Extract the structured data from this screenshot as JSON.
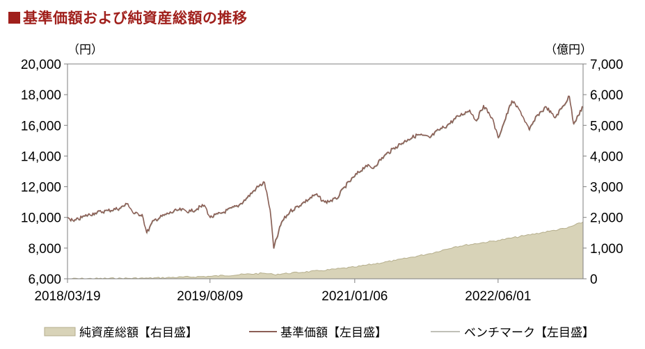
{
  "title": "基準価額および純資産総額の推移",
  "colors": {
    "title": "#a0201c",
    "nav_line": "#8b5e55",
    "benchmark_line": "#9a9a8c",
    "assets_fill": "#d8d3b8",
    "assets_stroke": "#b5ae8c"
  },
  "chart_data": {
    "type": "line",
    "left_axis": {
      "unit_label": "（円）",
      "ticks": [
        "20,000",
        "18,000",
        "16,000",
        "14,000",
        "12,000",
        "10,000",
        "8,000",
        "6,000"
      ],
      "ylim": [
        6000,
        20000
      ]
    },
    "right_axis": {
      "unit_label": "（億円）",
      "ticks": [
        "7,000",
        "6,000",
        "5,000",
        "4,000",
        "3,000",
        "2,000",
        "1,000",
        "0"
      ],
      "ylim": [
        0,
        7000
      ]
    },
    "x_ticks": [
      "2018/03/19",
      "2019/08/09",
      "2021/01/06",
      "2022/06/01"
    ],
    "x_range": [
      "2018/03/19",
      "2023/03/31"
    ],
    "legend": {
      "assets": "純資産総額【右目盛】",
      "nav": "基準価額【左目盛】",
      "benchmark": "ベンチマーク【左目盛】"
    },
    "legend_position": "bottom",
    "grid": false,
    "series": [
      {
        "name": "基準価額【左目盛】",
        "axis": "left",
        "points": [
          [
            "2018/03/19",
            10000
          ],
          [
            "2018/04/10",
            9750
          ],
          [
            "2018/05/20",
            10100
          ],
          [
            "2018/06/25",
            10300
          ],
          [
            "2018/08/10",
            10450
          ],
          [
            "2018/09/20",
            10600
          ],
          [
            "2018/10/20",
            10900
          ],
          [
            "2018/11/10",
            10250
          ],
          [
            "2018/12/10",
            10200
          ],
          [
            "2018/12/26",
            9000
          ],
          [
            "2019/01/20",
            9800
          ],
          [
            "2019/03/05",
            10200
          ],
          [
            "2019/04/20",
            10500
          ],
          [
            "2019/06/01",
            10400
          ],
          [
            "2019/07/20",
            10800
          ],
          [
            "2019/08/09",
            10000
          ],
          [
            "2019/09/20",
            10300
          ],
          [
            "2019/11/20",
            10800
          ],
          [
            "2019/12/20",
            11300
          ],
          [
            "2020/01/20",
            11900
          ],
          [
            "2020/02/19",
            12300
          ],
          [
            "2020/03/10",
            10500
          ],
          [
            "2020/03/23",
            8000
          ],
          [
            "2020/04/20",
            9700
          ],
          [
            "2020/05/20",
            10400
          ],
          [
            "2020/07/01",
            10900
          ],
          [
            "2020/08/20",
            11500
          ],
          [
            "2020/09/20",
            11000
          ],
          [
            "2020/11/01",
            11200
          ],
          [
            "2020/12/01",
            12000
          ],
          [
            "2021/01/06",
            12700
          ],
          [
            "2021/02/15",
            13400
          ],
          [
            "2021/03/10",
            13200
          ],
          [
            "2021/04/20",
            14000
          ],
          [
            "2021/06/01",
            14600
          ],
          [
            "2021/07/15",
            15100
          ],
          [
            "2021/08/20",
            15400
          ],
          [
            "2021/09/30",
            15200
          ],
          [
            "2021/11/01",
            15700
          ],
          [
            "2021/12/01",
            16000
          ],
          [
            "2022/01/10",
            16600
          ],
          [
            "2022/02/20",
            17000
          ],
          [
            "2022/03/15",
            16300
          ],
          [
            "2022/04/10",
            17300
          ],
          [
            "2022/05/10",
            16500
          ],
          [
            "2022/06/01",
            15200
          ],
          [
            "2022/06/20",
            16100
          ],
          [
            "2022/07/20",
            17600
          ],
          [
            "2022/08/20",
            16900
          ],
          [
            "2022/09/20",
            15700
          ],
          [
            "2022/10/20",
            16700
          ],
          [
            "2022/11/20",
            17200
          ],
          [
            "2022/12/20",
            16500
          ],
          [
            "2023/01/20",
            17300
          ],
          [
            "2023/02/10",
            17900
          ],
          [
            "2023/02/25",
            16100
          ],
          [
            "2023/03/10",
            16600
          ],
          [
            "2023/03/31",
            17200
          ]
        ]
      },
      {
        "name": "純資産総額【右目盛】",
        "axis": "right",
        "points": [
          [
            "2018/03/19",
            0
          ],
          [
            "2019/01/01",
            20
          ],
          [
            "2019/08/09",
            80
          ],
          [
            "2020/02/19",
            180
          ],
          [
            "2020/03/23",
            140
          ],
          [
            "2020/09/01",
            260
          ],
          [
            "2021/01/06",
            380
          ],
          [
            "2021/06/01",
            600
          ],
          [
            "2021/10/01",
            820
          ],
          [
            "2022/01/01",
            1050
          ],
          [
            "2022/06/01",
            1250
          ],
          [
            "2022/09/01",
            1400
          ],
          [
            "2022/12/01",
            1550
          ],
          [
            "2023/02/01",
            1650
          ],
          [
            "2023/03/31",
            1850
          ]
        ]
      }
    ]
  }
}
